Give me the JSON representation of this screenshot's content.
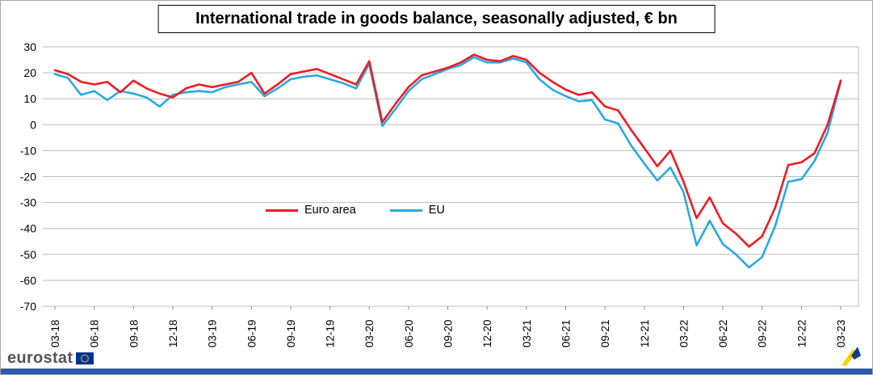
{
  "title": "International trade in goods balance, seasonally adjusted, € bn",
  "branding": {
    "logo_text": "eurostat"
  },
  "chart_data": {
    "type": "line",
    "title": "International trade in goods balance, seasonally adjusted, € bn",
    "ylim": [
      -70,
      30
    ],
    "yticks": [
      30,
      20,
      10,
      0,
      -10,
      -20,
      -30,
      -40,
      -50,
      -60,
      -70
    ],
    "grid": "horizontal",
    "legend_position": "inside-center",
    "tick_every": 3,
    "x_monthly": [
      "03-18",
      "04-18",
      "05-18",
      "06-18",
      "07-18",
      "08-18",
      "09-18",
      "10-18",
      "11-18",
      "12-18",
      "01-19",
      "02-19",
      "03-19",
      "04-19",
      "05-19",
      "06-19",
      "07-19",
      "08-19",
      "09-19",
      "10-19",
      "11-19",
      "12-19",
      "01-20",
      "02-20",
      "03-20",
      "04-20",
      "05-20",
      "06-20",
      "07-20",
      "08-20",
      "09-20",
      "10-20",
      "11-20",
      "12-20",
      "01-21",
      "02-21",
      "03-21",
      "04-21",
      "05-21",
      "06-21",
      "07-21",
      "08-21",
      "09-21",
      "10-21",
      "11-21",
      "12-21",
      "01-22",
      "02-22",
      "03-22",
      "04-22",
      "05-22",
      "06-22",
      "07-22",
      "08-22",
      "09-22",
      "10-22",
      "11-22",
      "12-22",
      "01-23",
      "02-23",
      "03-23"
    ],
    "series": [
      {
        "name": "Euro area",
        "color": "#ed1c24",
        "values": [
          21,
          19.5,
          16.5,
          15.5,
          16.5,
          12.5,
          17,
          14,
          12,
          10.5,
          14,
          15.5,
          14.5,
          15.5,
          16.5,
          20,
          12,
          15.5,
          19.5,
          20.5,
          21.5,
          19.5,
          17.5,
          15.5,
          24.5,
          1,
          8,
          14.5,
          19,
          20.5,
          22,
          24,
          27,
          25,
          24.5,
          26.5,
          25,
          20,
          16.5,
          13.5,
          11.5,
          12.5,
          7,
          5.5,
          -2,
          -9,
          -16,
          -10,
          -22,
          -36,
          -28,
          -38,
          -42,
          -47,
          -43,
          -32,
          -15.5,
          -14.5,
          -11,
          0,
          17
        ]
      },
      {
        "name": "EU",
        "color": "#29a9e1",
        "values": [
          19.5,
          18,
          11.5,
          13,
          9.5,
          13,
          12,
          10.5,
          7,
          11.5,
          12.5,
          13,
          12.5,
          14.5,
          15.5,
          16.5,
          11,
          14,
          17.5,
          18.5,
          19,
          17.5,
          16,
          14,
          23.5,
          -0.5,
          6,
          13,
          17.5,
          19.5,
          21.5,
          23,
          26,
          24,
          24,
          25.5,
          24,
          17.5,
          13.5,
          11,
          9,
          9.5,
          2,
          0.5,
          -8,
          -15,
          -21.5,
          -16.5,
          -26,
          -46.5,
          -37,
          -46,
          -50,
          -55,
          -51,
          -39,
          -22,
          -21,
          -14,
          -3,
          16.5
        ]
      }
    ]
  }
}
